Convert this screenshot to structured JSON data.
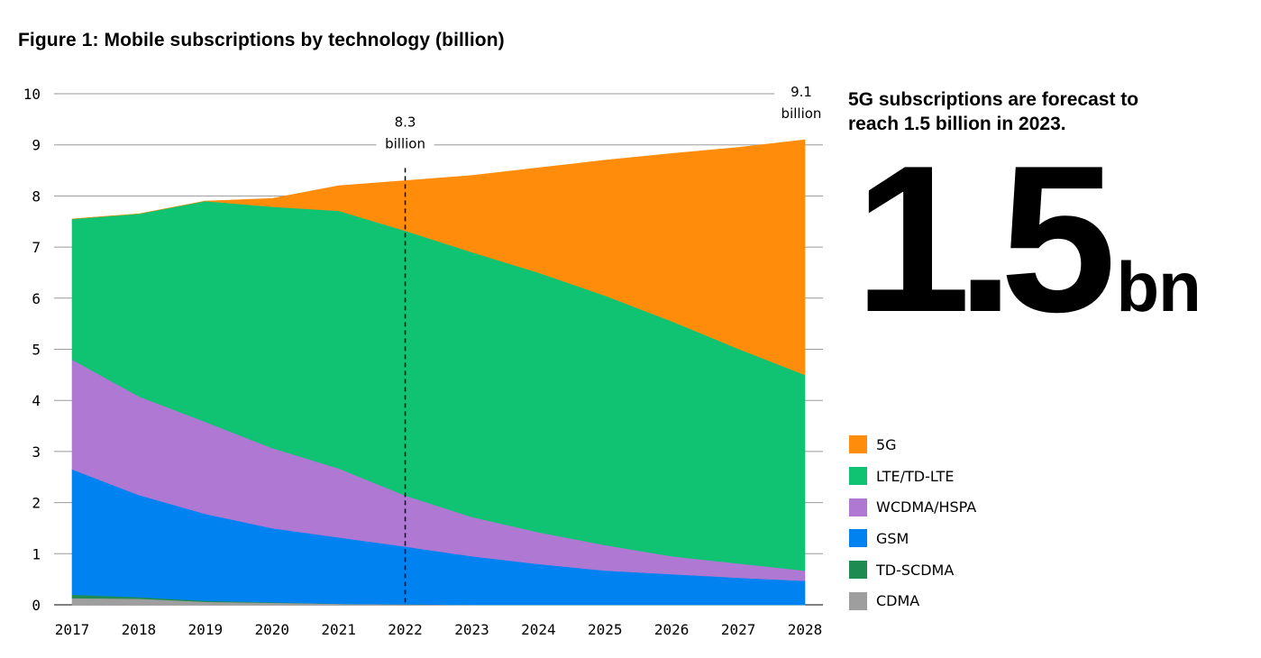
{
  "figure": {
    "title": "Figure 1: Mobile subscriptions by technology (billion)",
    "callout_text": "5G subscriptions are forecast to reach 1.5 billion in 2023.",
    "big_number": "1.5",
    "big_number_unit": "bn"
  },
  "chart_data": {
    "type": "area",
    "stacked": true,
    "title": "Figure 1: Mobile subscriptions by technology (billion)",
    "xlabel": "",
    "ylabel": "",
    "x": [
      "2017",
      "2018",
      "2019",
      "2020",
      "2021",
      "2022",
      "2023",
      "2024",
      "2025",
      "2026",
      "2027",
      "2028"
    ],
    "ylim": [
      0,
      10
    ],
    "yticks": [
      0,
      1,
      2,
      3,
      4,
      5,
      6,
      7,
      8,
      9,
      10
    ],
    "grid": true,
    "series": [
      {
        "name": "CDMA",
        "color": "#9e9e9e",
        "values": [
          0.13,
          0.12,
          0.06,
          0.04,
          0.02,
          0.01,
          0,
          0,
          0,
          0,
          0,
          0
        ]
      },
      {
        "name": "TD-SCDMA",
        "color": "#1e8c50",
        "values": [
          0.07,
          0.03,
          0.02,
          0.01,
          0,
          0,
          0,
          0,
          0,
          0,
          0,
          0
        ]
      },
      {
        "name": "GSM",
        "color": "#0082f0",
        "values": [
          2.45,
          2.0,
          1.7,
          1.45,
          1.3,
          1.13,
          0.95,
          0.8,
          0.67,
          0.6,
          0.53,
          0.47
        ]
      },
      {
        "name": "WCDMA/HSPA",
        "color": "#af78d2",
        "values": [
          2.15,
          1.93,
          1.8,
          1.57,
          1.35,
          1.0,
          0.77,
          0.62,
          0.5,
          0.35,
          0.28,
          0.2
        ]
      },
      {
        "name": "LTE/TD-LTE",
        "color": "#0fc373",
        "values": [
          2.75,
          3.57,
          4.32,
          4.72,
          5.04,
          5.18,
          5.18,
          5.08,
          4.88,
          4.6,
          4.2,
          3.83
        ]
      },
      {
        "name": "5G",
        "color": "#ff8c0a",
        "values": [
          0,
          0,
          0,
          0.16,
          0.49,
          0.98,
          1.5,
          2.05,
          2.65,
          3.28,
          3.94,
          4.6
        ]
      }
    ],
    "annotations": [
      {
        "x": "2022",
        "value": "8.3",
        "line1": "8.3",
        "line2": "billion",
        "style": "dashed-vertical-line"
      },
      {
        "x": "2028",
        "value": "9.1",
        "line1": "9.1",
        "line2": "billion"
      }
    ],
    "legend_position": "right",
    "legend_order": [
      "5G",
      "LTE/TD-LTE",
      "WCDMA/HSPA",
      "GSM",
      "TD-SCDMA",
      "CDMA"
    ]
  }
}
